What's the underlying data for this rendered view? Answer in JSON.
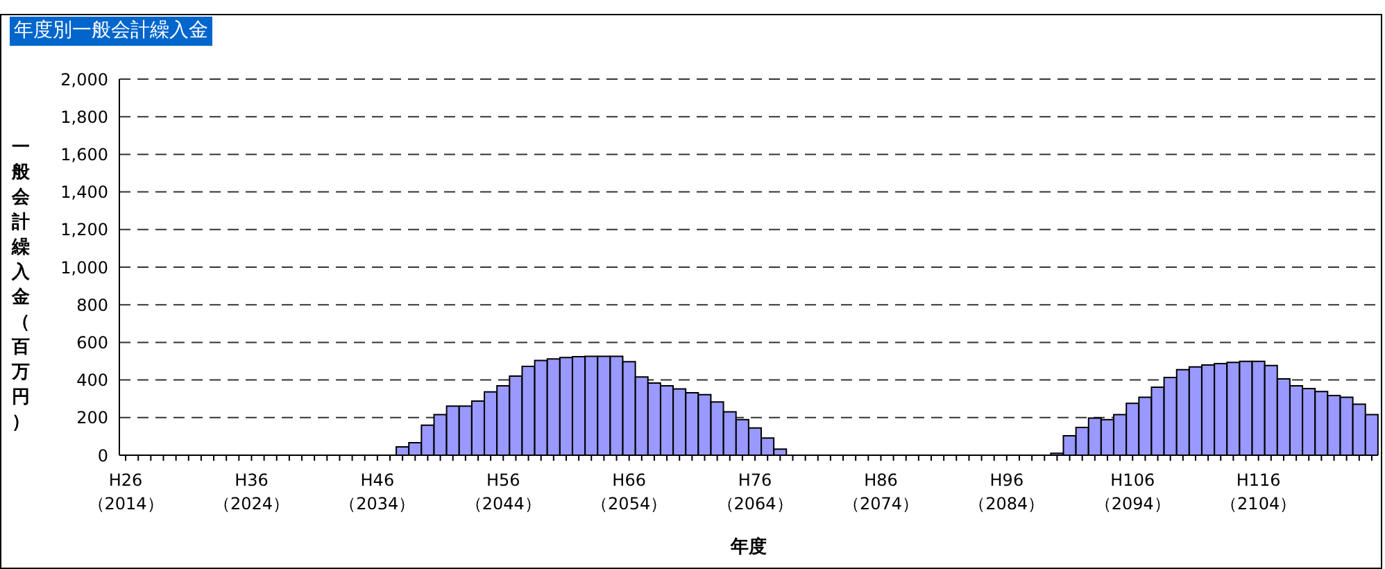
{
  "chart_data": {
    "type": "bar",
    "title": "年度別一般会計繰入金",
    "xlabel": "年度",
    "ylabel": "一般会計繰入金（百万円）",
    "categories": [
      "H26\n（2014）",
      null,
      null,
      null,
      null,
      null,
      null,
      null,
      null,
      null,
      "H36\n（2024）",
      null,
      null,
      null,
      null,
      null,
      null,
      null,
      null,
      null,
      "H46\n（2034）",
      null,
      null,
      null,
      null,
      null,
      null,
      null,
      null,
      null,
      "H56\n（2044）",
      null,
      null,
      null,
      null,
      null,
      null,
      null,
      null,
      null,
      "H66\n（2054）",
      null,
      null,
      null,
      null,
      null,
      null,
      null,
      null,
      null,
      "H76\n（2064）",
      null,
      null,
      null,
      null,
      null,
      null,
      null,
      null,
      null,
      "H86\n（2074）",
      null,
      null,
      null,
      null,
      null,
      null,
      null,
      null,
      null,
      "H96\n（2084）",
      null,
      null,
      null,
      null,
      null,
      null,
      null,
      null,
      null,
      "H106\n（2094）",
      null,
      null,
      null,
      null,
      null,
      null,
      null,
      null,
      null,
      "H116\n（2104）",
      null,
      null,
      null,
      null,
      null,
      null,
      null,
      null,
      null
    ],
    "values": [
      0,
      0,
      0,
      0,
      0,
      0,
      0,
      0,
      0,
      0,
      0,
      0,
      0,
      0,
      0,
      0,
      0,
      0,
      0,
      0,
      0,
      0,
      44,
      66,
      160,
      216,
      261,
      261,
      288,
      337,
      369,
      421,
      472,
      504,
      512,
      519,
      524,
      526,
      526,
      526,
      497,
      416,
      384,
      369,
      352,
      332,
      322,
      283,
      231,
      189,
      145,
      91,
      32,
      0,
      0,
      0,
      0,
      0,
      0,
      0,
      0,
      0,
      0,
      0,
      0,
      0,
      0,
      0,
      0,
      0,
      0,
      0,
      0,
      0,
      10,
      103,
      148,
      197,
      189,
      216,
      276,
      308,
      362,
      413,
      455,
      470,
      480,
      487,
      494,
      499,
      499,
      477,
      406,
      369,
      354,
      339,
      317,
      308,
      271,
      216
    ],
    "color": "#9999ff",
    "ylim": [
      0,
      2000
    ],
    "yticks": [
      0,
      {
        "value": 200,
        "label": "200"
      },
      {
        "value": 400,
        "label": "400"
      },
      {
        "value": 600,
        "label": "600"
      },
      {
        "value": 800,
        "label": "800"
      },
      {
        "value": 1000,
        "label": "1,000"
      },
      {
        "value": 1200,
        "label": "1,200"
      },
      {
        "value": 1400,
        "label": "1,400"
      },
      {
        "value": 1600,
        "label": "1,600"
      },
      {
        "value": 1800,
        "label": "1,800"
      },
      {
        "value": 2000,
        "label": "2,000"
      }
    ],
    "grid": "y"
  }
}
